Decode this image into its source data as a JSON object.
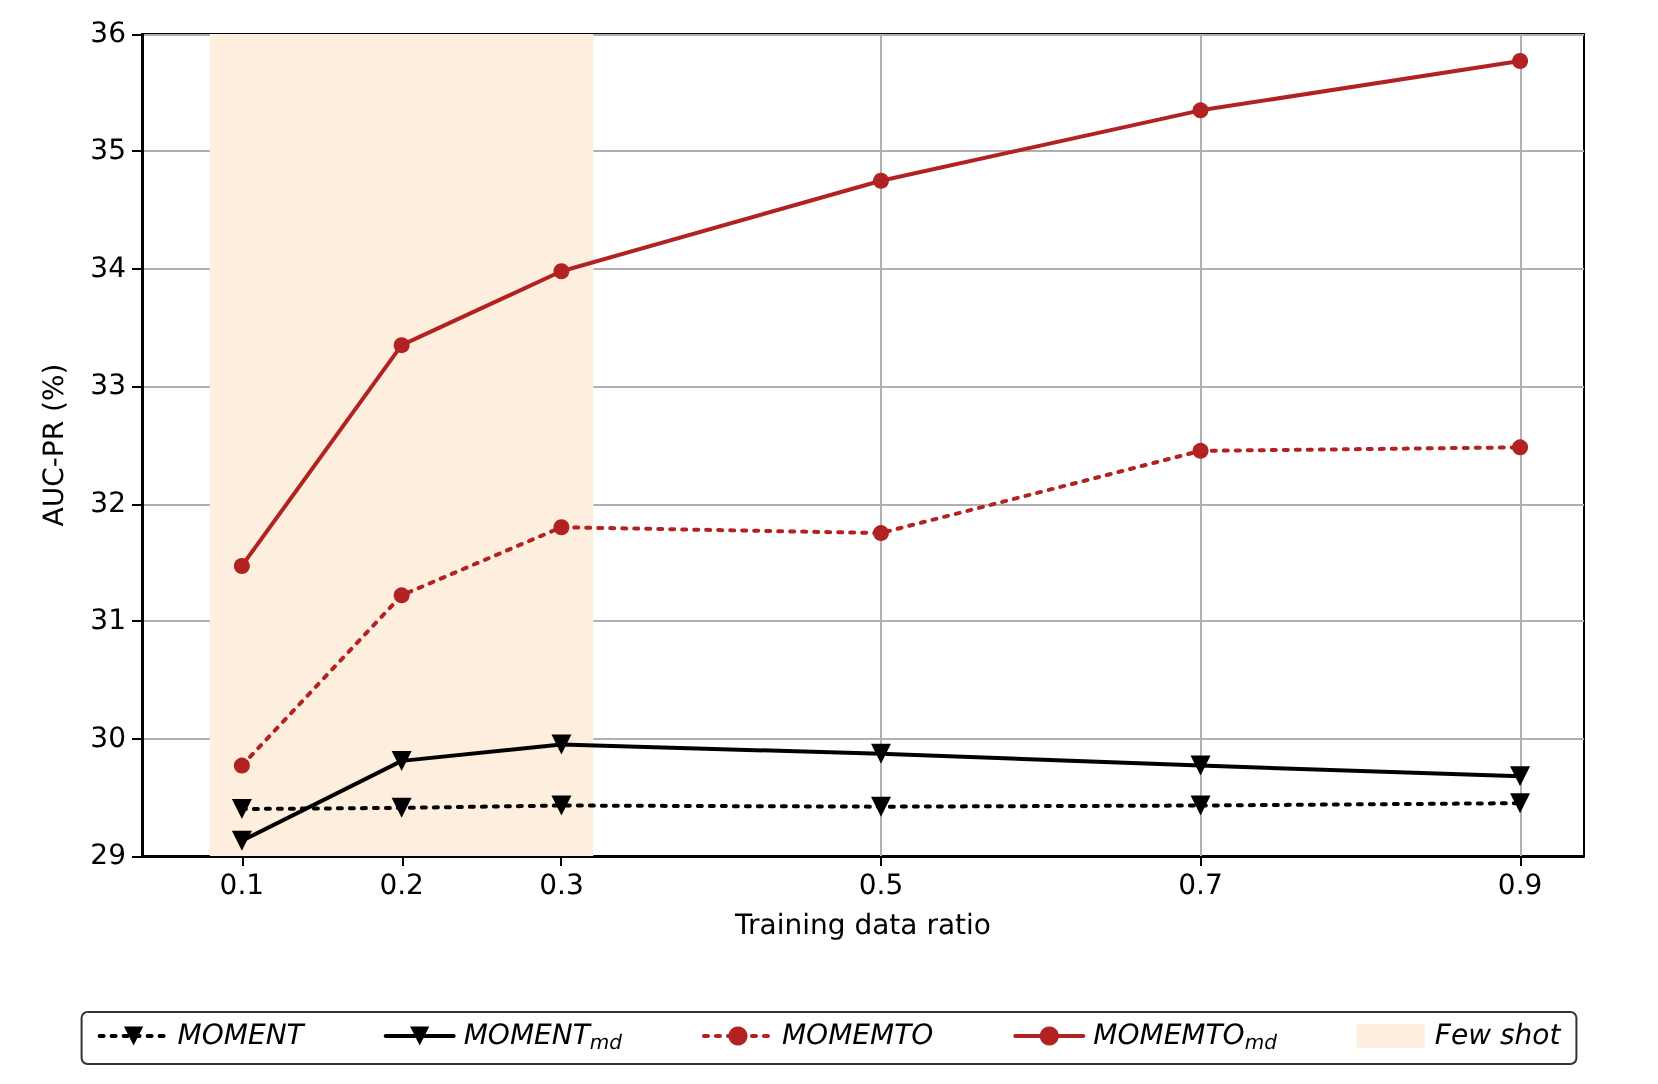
{
  "chart_data": {
    "type": "line",
    "xlabel": "Training data ratio",
    "ylabel": "AUC-PR (%)",
    "x": [
      0.1,
      0.2,
      0.3,
      0.5,
      0.7,
      0.9
    ],
    "series": [
      {
        "name": "MOMENT",
        "color": "#000000",
        "line_style": "dotted",
        "marker": "triangle",
        "values": [
          29.4,
          29.41,
          29.43,
          29.42,
          29.43,
          29.45
        ]
      },
      {
        "name": "MOMENT$_{md}$",
        "color": "#000000",
        "line_style": "solid",
        "marker": "triangle",
        "values": [
          29.13,
          29.81,
          29.95,
          29.87,
          29.77,
          29.68
        ]
      },
      {
        "name": "MOMEMTO",
        "color": "#b22222",
        "line_style": "dotted",
        "marker": "circle",
        "values": [
          29.77,
          31.22,
          31.8,
          31.75,
          32.45,
          32.48
        ]
      },
      {
        "name": "MOMEMTO$_{md}$",
        "color": "#b22222",
        "line_style": "solid",
        "marker": "circle",
        "values": [
          31.47,
          33.35,
          33.98,
          34.75,
          35.35,
          35.77
        ]
      }
    ],
    "bands": [
      {
        "axis": "x",
        "from": 0.08,
        "to": 0.32,
        "label": "Few shot",
        "color": "#fdeedd"
      }
    ],
    "xlim": [
      0.0375,
      0.94
    ],
    "xticks": [
      0.1,
      0.2,
      0.3,
      0.5,
      0.7,
      0.9
    ],
    "ylim": [
      29,
      36
    ],
    "yticks": [
      29,
      30,
      31,
      32,
      33,
      34,
      35,
      36
    ],
    "grid": true,
    "legend": "bottom"
  }
}
